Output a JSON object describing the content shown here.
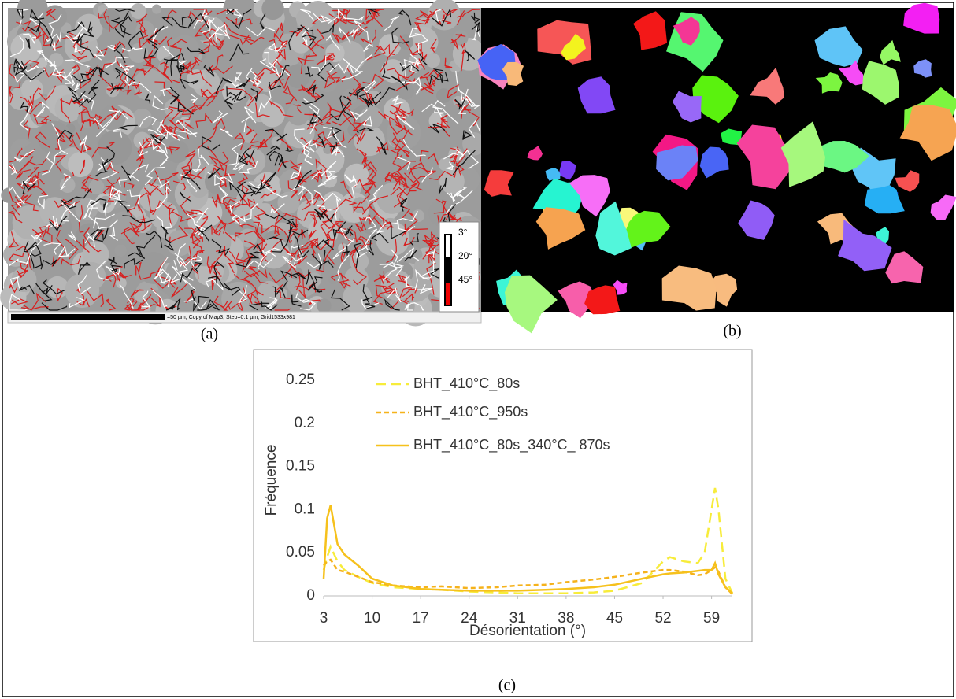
{
  "panel_a": {
    "legend": [
      "3°",
      "20°",
      "45°"
    ],
    "scale_text": "=50 µm; Copy of Map3; Step=0.1 µm; Grid1533x981"
  },
  "captions": [
    "(a)",
    "(b)",
    "(c)"
  ],
  "chart_data": {
    "type": "line",
    "x_label": "Désorientation (°)",
    "y_label": "Fréquence",
    "x": [
      3,
      3.5,
      4,
      5,
      6,
      8,
      10,
      13,
      17,
      20,
      24,
      28,
      31,
      35,
      38,
      42,
      45,
      49,
      52,
      53,
      55,
      57,
      58,
      59,
      59.5,
      60,
      61,
      62
    ],
    "series": [
      {
        "name": "BHT_410°C_80s",
        "color": "#f7ec3a",
        "line_style": "long-dash",
        "values": [
          0.03,
          0.045,
          0.057,
          0.04,
          0.03,
          0.022,
          0.015,
          0.01,
          0.008,
          0.007,
          0.005,
          0.004,
          0.003,
          0.003,
          0.003,
          0.004,
          0.006,
          0.015,
          0.04,
          0.045,
          0.04,
          0.038,
          0.05,
          0.1,
          0.125,
          0.1,
          0.02,
          0.003
        ]
      },
      {
        "name": "BHT_410°C_950s",
        "color": "#f5b21b",
        "line_style": "short-dash",
        "values": [
          0.035,
          0.04,
          0.042,
          0.03,
          0.028,
          0.022,
          0.016,
          0.012,
          0.01,
          0.011,
          0.009,
          0.01,
          0.012,
          0.013,
          0.016,
          0.019,
          0.022,
          0.027,
          0.03,
          0.03,
          0.028,
          0.024,
          0.025,
          0.03,
          0.033,
          0.028,
          0.01,
          0.002
        ]
      },
      {
        "name": "BHT_410°C_80s_340°C_ 870s",
        "color": "#f6c11c",
        "line_style": "solid",
        "values": [
          0.02,
          0.09,
          0.105,
          0.06,
          0.048,
          0.035,
          0.02,
          0.012,
          0.008,
          0.007,
          0.006,
          0.006,
          0.006,
          0.007,
          0.008,
          0.01,
          0.013,
          0.02,
          0.025,
          0.026,
          0.027,
          0.029,
          0.03,
          0.03,
          0.038,
          0.025,
          0.01,
          0.003
        ]
      }
    ],
    "xlim": [
      3,
      62
    ],
    "ylim": [
      0,
      0.25
    ],
    "xticks": [
      3,
      10,
      17,
      24,
      31,
      38,
      45,
      52,
      59
    ],
    "yticks": [
      0,
      0.05,
      0.1,
      0.15,
      0.2,
      0.25
    ],
    "grid": false
  }
}
